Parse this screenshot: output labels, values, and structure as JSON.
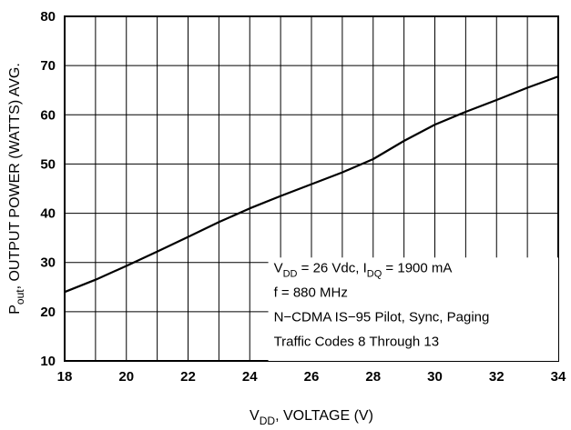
{
  "chart_data": {
    "type": "line",
    "title": "",
    "xlabel": {
      "main": "V",
      "sub": "DD",
      "rest": ", VOLTAGE (V)"
    },
    "ylabel": {
      "main": "P",
      "sub": "out",
      "rest": ", OUTPUT POWER (WATTS) AVG."
    },
    "xlim": [
      18,
      34
    ],
    "ylim": [
      10,
      80
    ],
    "x_ticks": [
      18,
      20,
      22,
      24,
      26,
      28,
      30,
      32,
      34
    ],
    "y_ticks": [
      10,
      20,
      30,
      40,
      50,
      60,
      70,
      80
    ],
    "grid": true,
    "series": [
      {
        "x": [
          18,
          19,
          20,
          21,
          22,
          23,
          24,
          25,
          26,
          27,
          28,
          29,
          30,
          31,
          32,
          33,
          34
        ],
        "y": [
          24.0,
          26.5,
          29.3,
          32.2,
          35.2,
          38.2,
          41.0,
          43.5,
          45.9,
          48.3,
          51.0,
          54.7,
          58.0,
          60.6,
          63.0,
          65.5,
          67.8
        ]
      }
    ],
    "annotation": {
      "line1": {
        "a": "V",
        "a_sub": "DD",
        "b": " = 26 Vdc, I",
        "b_sub": "DQ",
        "c": " = 1900 mA"
      },
      "line2": "f = 880 MHz",
      "line3": "N−CDMA IS−95 Pilot, Sync, Paging",
      "line4": "Traffic Codes 8 Through 13"
    }
  }
}
